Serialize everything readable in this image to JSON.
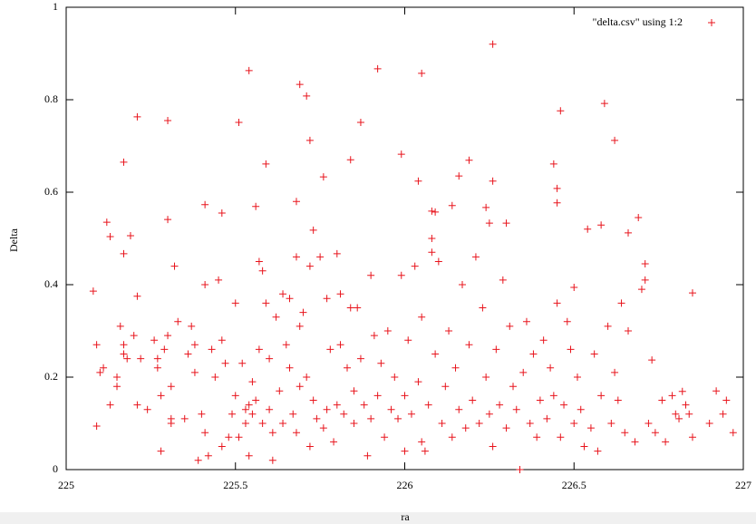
{
  "chart_data": {
    "type": "scatter",
    "xlabel": "ra",
    "ylabel": "Delta",
    "xlim": [
      225,
      227
    ],
    "ylim": [
      0,
      1
    ],
    "xticks": [
      225,
      225.5,
      226,
      226.5,
      227
    ],
    "yticks": [
      0,
      0.2,
      0.4,
      0.6,
      0.8,
      1
    ],
    "legend": "top-right",
    "marker": "+",
    "series": [
      {
        "name": "\"delta.csv\" using 1:2",
        "color": "#e8141c",
        "x": [
          225.08,
          225.09,
          225.09,
          225.12,
          225.13,
          225.17,
          225.17,
          225.19,
          225.21,
          225.21,
          225.3,
          225.3,
          225.32,
          225.41,
          225.46,
          225.51,
          225.54,
          225.56,
          225.59,
          225.69,
          225.71,
          225.72,
          225.68,
          225.73,
          225.76,
          225.8,
          225.84,
          225.87,
          225.92,
          225.99,
          226.04,
          226.05,
          226.08,
          226.09,
          226.14,
          226.16,
          226.19,
          226.24,
          226.25,
          226.26,
          226.26,
          226.3,
          226.44,
          226.45,
          226.45,
          226.46,
          226.5,
          226.58,
          226.59,
          226.62,
          226.66,
          226.69,
          226.71,
          226.73,
          226.85,
          226.82,
          225.1,
          225.11,
          225.13,
          225.15,
          225.15,
          225.16,
          225.17,
          225.17,
          225.18,
          225.2,
          225.21,
          225.22,
          225.24,
          225.26,
          225.27,
          225.27,
          225.28,
          225.28,
          225.29,
          225.3,
          225.31,
          225.31,
          225.31,
          225.33,
          225.35,
          225.36,
          225.37,
          225.38,
          225.38,
          225.39,
          225.4,
          225.41,
          225.41,
          225.42,
          225.43,
          225.44,
          225.45,
          225.46,
          225.46,
          225.47,
          225.48,
          225.49,
          225.5,
          225.5,
          225.51,
          225.52,
          225.53,
          225.53,
          225.54,
          225.54,
          225.55,
          225.55,
          225.56,
          225.57,
          225.57,
          225.58,
          225.58,
          225.59,
          225.6,
          225.6,
          225.61,
          225.61,
          225.62,
          225.63,
          225.64,
          225.64,
          225.65,
          225.66,
          225.66,
          225.67,
          225.68,
          225.68,
          225.69,
          225.69,
          225.7,
          225.71,
          225.72,
          225.72,
          225.73,
          225.74,
          225.75,
          225.76,
          225.77,
          225.77,
          225.78,
          225.79,
          225.8,
          225.81,
          225.81,
          225.82,
          225.83,
          225.84,
          225.85,
          225.85,
          225.86,
          225.87,
          225.88,
          225.89,
          225.9,
          225.9,
          225.91,
          225.92,
          225.93,
          225.94,
          225.95,
          225.96,
          225.97,
          225.98,
          225.99,
          226.0,
          226.0,
          226.01,
          226.02,
          226.03,
          226.04,
          226.05,
          226.05,
          226.06,
          226.07,
          226.08,
          226.08,
          226.09,
          226.1,
          226.11,
          226.12,
          226.13,
          226.14,
          226.15,
          226.16,
          226.17,
          226.18,
          226.19,
          226.2,
          226.21,
          226.22,
          226.23,
          226.24,
          226.25,
          226.26,
          226.27,
          226.28,
          226.29,
          226.3,
          226.31,
          226.32,
          226.33,
          226.34,
          226.35,
          226.36,
          226.37,
          226.38,
          226.39,
          226.4,
          226.41,
          226.42,
          226.43,
          226.44,
          226.45,
          226.46,
          226.47,
          226.48,
          226.49,
          226.5,
          226.51,
          226.52,
          226.53,
          226.54,
          226.55,
          226.56,
          226.57,
          226.58,
          226.6,
          226.61,
          226.62,
          226.63,
          226.64,
          226.65,
          226.66,
          226.68,
          226.7,
          226.71,
          226.72,
          226.74,
          226.76,
          226.77,
          226.79,
          226.8,
          226.81,
          226.83,
          226.84,
          226.85,
          226.9,
          226.92,
          226.94,
          226.95,
          226.97
        ],
        "values": [
          0.386,
          0.094,
          0.27,
          0.535,
          0.504,
          0.665,
          0.467,
          0.506,
          0.763,
          0.375,
          0.755,
          0.541,
          0.44,
          0.573,
          0.555,
          0.751,
          0.863,
          0.569,
          0.661,
          0.833,
          0.808,
          0.712,
          0.58,
          0.518,
          0.633,
          0.467,
          0.67,
          0.751,
          0.867,
          0.682,
          0.624,
          0.857,
          0.559,
          0.557,
          0.571,
          0.635,
          0.669,
          0.567,
          0.533,
          0.92,
          0.624,
          0.533,
          0.661,
          0.608,
          0.577,
          0.776,
          0.394,
          0.529,
          0.792,
          0.712,
          0.512,
          0.545,
          0.445,
          0.237,
          0.382,
          0.169,
          0.21,
          0.22,
          0.14,
          0.2,
          0.18,
          0.31,
          0.25,
          0.27,
          0.24,
          0.29,
          0.14,
          0.24,
          0.13,
          0.28,
          0.24,
          0.22,
          0.04,
          0.16,
          0.26,
          0.29,
          0.1,
          0.18,
          0.11,
          0.32,
          0.11,
          0.25,
          0.31,
          0.27,
          0.21,
          0.02,
          0.12,
          0.08,
          0.4,
          0.03,
          0.26,
          0.2,
          0.41,
          0.05,
          0.28,
          0.23,
          0.07,
          0.12,
          0.16,
          0.36,
          0.07,
          0.23,
          0.13,
          0.1,
          0.14,
          0.03,
          0.12,
          0.19,
          0.15,
          0.26,
          0.45,
          0.43,
          0.1,
          0.36,
          0.13,
          0.24,
          0.02,
          0.08,
          0.33,
          0.17,
          0.38,
          0.1,
          0.27,
          0.37,
          0.22,
          0.12,
          0.46,
          0.08,
          0.31,
          0.18,
          0.34,
          0.2,
          0.05,
          0.44,
          0.15,
          0.11,
          0.46,
          0.09,
          0.13,
          0.37,
          0.26,
          0.06,
          0.14,
          0.38,
          0.27,
          0.12,
          0.22,
          0.35,
          0.1,
          0.17,
          0.35,
          0.24,
          0.14,
          0.03,
          0.42,
          0.11,
          0.29,
          0.16,
          0.23,
          0.07,
          0.3,
          0.13,
          0.2,
          0.11,
          0.42,
          0.04,
          0.16,
          0.28,
          0.12,
          0.44,
          0.19,
          0.33,
          0.06,
          0.04,
          0.14,
          0.5,
          0.47,
          0.25,
          0.45,
          0.1,
          0.18,
          0.3,
          0.07,
          0.22,
          0.13,
          0.4,
          0.09,
          0.27,
          0.15,
          0.46,
          0.1,
          0.35,
          0.2,
          0.12,
          0.05,
          0.26,
          0.14,
          0.41,
          0.09,
          0.31,
          0.18,
          0.13,
          0.0,
          0.21,
          0.32,
          0.1,
          0.25,
          0.07,
          0.15,
          0.28,
          0.11,
          0.22,
          0.16,
          0.36,
          0.07,
          0.14,
          0.32,
          0.26,
          0.1,
          0.2,
          0.13,
          0.05,
          0.52,
          0.09,
          0.25,
          0.04,
          0.16,
          0.31,
          0.1,
          0.21,
          0.15,
          0.36,
          0.08,
          0.3,
          0.06,
          0.39,
          0.41,
          0.1,
          0.08,
          0.15,
          0.06,
          0.16,
          0.12,
          0.11,
          0.14,
          0.12,
          0.07,
          0.1,
          0.17,
          0.12,
          0.15,
          0.08
        ]
      }
    ]
  }
}
